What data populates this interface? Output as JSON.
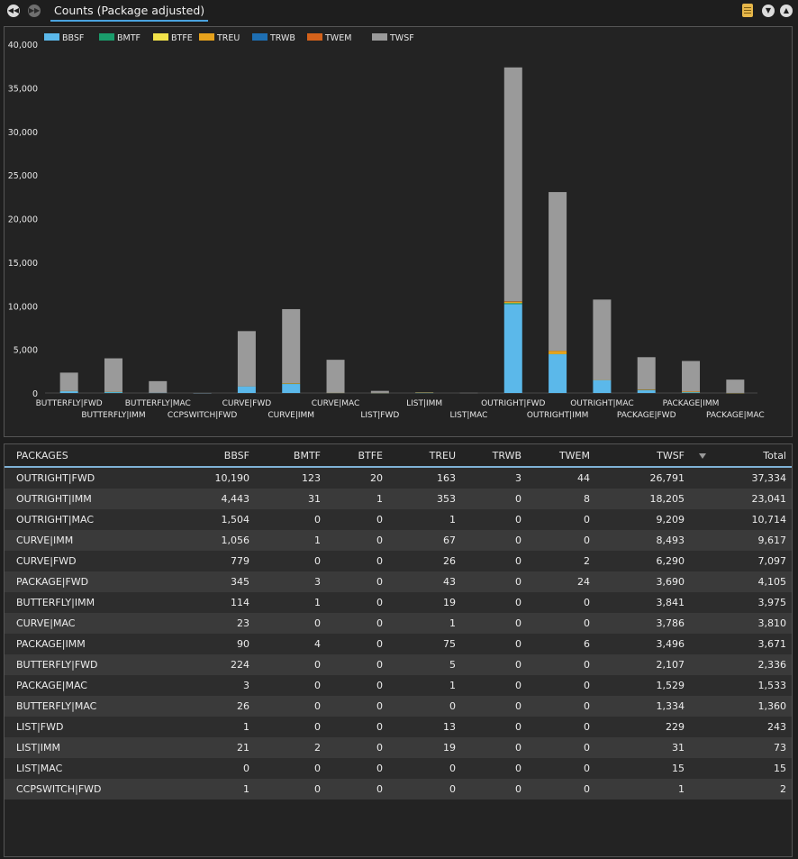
{
  "toolbar": {
    "tab_label": "Counts (Package adjusted)"
  },
  "colors": {
    "BBSF": "#5bb8ea",
    "BMTF": "#1a9c6b",
    "BTFE": "#f2e24a",
    "TREU": "#e6a21c",
    "TRWB": "#1e6fb3",
    "TWEM": "#d4621b",
    "TWSF": "#9a9a9a"
  },
  "chart_data": {
    "type": "bar",
    "stacked": true,
    "title": "",
    "xlabel": "",
    "ylabel": "",
    "ylim": [
      0,
      40000
    ],
    "yticks": [
      "0",
      "5,000",
      "10,000",
      "15,000",
      "20,000",
      "25,000",
      "30,000",
      "35,000",
      "40,000"
    ],
    "legend_position": "top-left",
    "categories": [
      "BUTTERFLY|FWD",
      "BUTTERFLY|IMM",
      "BUTTERFLY|MAC",
      "CCPSWITCH|FWD",
      "CURVE|FWD",
      "CURVE|IMM",
      "CURVE|MAC",
      "LIST|FWD",
      "LIST|IMM",
      "LIST|MAC",
      "OUTRIGHT|FWD",
      "OUTRIGHT|IMM",
      "OUTRIGHT|MAC",
      "PACKAGE|FWD",
      "PACKAGE|IMM",
      "PACKAGE|MAC"
    ],
    "series": [
      {
        "name": "BBSF",
        "values": [
          224,
          114,
          26,
          1,
          779,
          1056,
          23,
          1,
          21,
          0,
          10190,
          4443,
          1504,
          345,
          90,
          3
        ]
      },
      {
        "name": "BMTF",
        "values": [
          0,
          1,
          0,
          0,
          0,
          1,
          0,
          0,
          2,
          0,
          123,
          31,
          0,
          3,
          4,
          0
        ]
      },
      {
        "name": "BTFE",
        "values": [
          0,
          0,
          0,
          0,
          0,
          0,
          0,
          0,
          0,
          0,
          20,
          1,
          0,
          0,
          0,
          0
        ]
      },
      {
        "name": "TREU",
        "values": [
          5,
          19,
          0,
          0,
          26,
          67,
          1,
          13,
          19,
          0,
          163,
          353,
          1,
          43,
          75,
          1
        ]
      },
      {
        "name": "TRWB",
        "values": [
          0,
          0,
          0,
          0,
          0,
          0,
          0,
          0,
          0,
          0,
          3,
          0,
          0,
          0,
          0,
          0
        ]
      },
      {
        "name": "TWEM",
        "values": [
          0,
          0,
          0,
          0,
          2,
          0,
          0,
          0,
          0,
          0,
          44,
          8,
          0,
          24,
          6,
          0
        ]
      },
      {
        "name": "TWSF",
        "values": [
          2107,
          3841,
          1334,
          1,
          6290,
          8493,
          3786,
          229,
          31,
          15,
          26791,
          18205,
          9209,
          3690,
          3496,
          1529
        ]
      }
    ]
  },
  "table": {
    "columns": [
      "PACKAGES",
      "BBSF",
      "BMTF",
      "BTFE",
      "TREU",
      "TRWB",
      "TWEM",
      "TWSF",
      "Total"
    ],
    "rows": [
      [
        "OUTRIGHT|FWD",
        "10,190",
        "123",
        "20",
        "163",
        "3",
        "44",
        "26,791",
        "37,334"
      ],
      [
        "OUTRIGHT|IMM",
        "4,443",
        "31",
        "1",
        "353",
        "0",
        "8",
        "18,205",
        "23,041"
      ],
      [
        "OUTRIGHT|MAC",
        "1,504",
        "0",
        "0",
        "1",
        "0",
        "0",
        "9,209",
        "10,714"
      ],
      [
        "CURVE|IMM",
        "1,056",
        "1",
        "0",
        "67",
        "0",
        "0",
        "8,493",
        "9,617"
      ],
      [
        "CURVE|FWD",
        "779",
        "0",
        "0",
        "26",
        "0",
        "2",
        "6,290",
        "7,097"
      ],
      [
        "PACKAGE|FWD",
        "345",
        "3",
        "0",
        "43",
        "0",
        "24",
        "3,690",
        "4,105"
      ],
      [
        "BUTTERFLY|IMM",
        "114",
        "1",
        "0",
        "19",
        "0",
        "0",
        "3,841",
        "3,975"
      ],
      [
        "CURVE|MAC",
        "23",
        "0",
        "0",
        "1",
        "0",
        "0",
        "3,786",
        "3,810"
      ],
      [
        "PACKAGE|IMM",
        "90",
        "4",
        "0",
        "75",
        "0",
        "6",
        "3,496",
        "3,671"
      ],
      [
        "BUTTERFLY|FWD",
        "224",
        "0",
        "0",
        "5",
        "0",
        "0",
        "2,107",
        "2,336"
      ],
      [
        "PACKAGE|MAC",
        "3",
        "0",
        "0",
        "1",
        "0",
        "0",
        "1,529",
        "1,533"
      ],
      [
        "BUTTERFLY|MAC",
        "26",
        "0",
        "0",
        "0",
        "0",
        "0",
        "1,334",
        "1,360"
      ],
      [
        "LIST|FWD",
        "1",
        "0",
        "0",
        "13",
        "0",
        "0",
        "229",
        "243"
      ],
      [
        "LIST|IMM",
        "21",
        "2",
        "0",
        "19",
        "0",
        "0",
        "31",
        "73"
      ],
      [
        "LIST|MAC",
        "0",
        "0",
        "0",
        "0",
        "0",
        "0",
        "15",
        "15"
      ],
      [
        "CCPSWITCH|FWD",
        "1",
        "0",
        "0",
        "0",
        "0",
        "0",
        "1",
        "2"
      ]
    ]
  }
}
